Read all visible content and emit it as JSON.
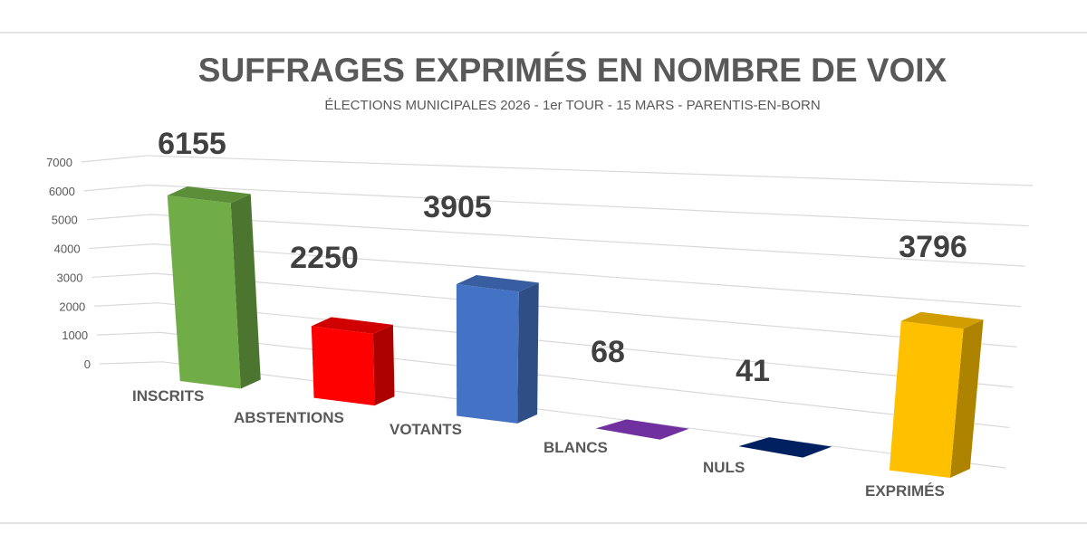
{
  "chart_data": {
    "type": "bar",
    "style": "3d-column",
    "title": "SUFFRAGES EXPRIMÉS EN NOMBRE DE VOIX",
    "subtitle": "ÉLECTIONS MUNICIPALES 2026 - 1er TOUR - 15 MARS - PARENTIS-EN-BORN",
    "xlabel": "",
    "ylabel": "",
    "ylim": [
      0,
      7000
    ],
    "yticks": [
      "0",
      "1000",
      "2000",
      "3000",
      "4000",
      "5000",
      "6000",
      "7000"
    ],
    "grid": true,
    "legend": "none",
    "categories": [
      "INSCRITS",
      "ABSTENTIONS",
      "VOTANTS",
      "BLANCS",
      "NULS",
      "EXPRIMÉS"
    ],
    "values": [
      6155,
      2250,
      3905,
      68,
      41,
      3796
    ],
    "data_labels": [
      "6155",
      "2250",
      "3905",
      "68",
      "41",
      "3796"
    ],
    "colors": [
      "#70ad47",
      "#ff0000",
      "#4472c4",
      "#7030a0",
      "#002060",
      "#ffc000"
    ]
  }
}
